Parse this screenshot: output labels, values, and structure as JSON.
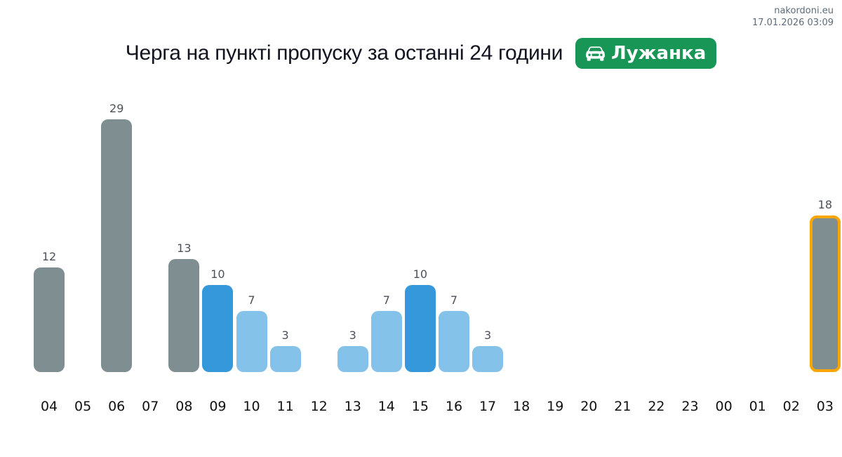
{
  "meta": {
    "site": "nakordoni.eu",
    "timestamp": "17.01.2026 03:09"
  },
  "header": {
    "title": "Черга на пункті пропуску за останні 24 години",
    "badge": {
      "label": "Лужанка",
      "color": "#189655",
      "icon": "car-front-icon"
    }
  },
  "chart_data": {
    "type": "bar",
    "title": "Черга на пункті пропуску за останні 24 години",
    "categories": [
      "04",
      "05",
      "06",
      "07",
      "08",
      "09",
      "10",
      "11",
      "12",
      "13",
      "14",
      "15",
      "16",
      "17",
      "18",
      "19",
      "20",
      "21",
      "22",
      "23",
      "00",
      "01",
      "02",
      "03"
    ],
    "values": [
      12,
      null,
      29,
      null,
      13,
      10,
      7,
      3,
      null,
      3,
      7,
      10,
      7,
      3,
      null,
      null,
      null,
      null,
      null,
      null,
      null,
      null,
      null,
      18
    ],
    "bar_colors": [
      "#7f8e90",
      null,
      "#7f8e90",
      null,
      "#7f8e90",
      "#3498db",
      "#85c2e9",
      "#85c2e9",
      null,
      "#85c2e9",
      "#85c2e9",
      "#3498db",
      "#85c2e9",
      "#85c2e9",
      null,
      null,
      null,
      null,
      null,
      null,
      null,
      null,
      null,
      "#7f8e90"
    ],
    "highlight_index": 23,
    "highlight_border_color": "#f9a602",
    "value_labels_shown": true,
    "ylim": [
      0,
      29
    ],
    "grid": false,
    "legend": null,
    "xlabel": "",
    "ylabel": ""
  }
}
